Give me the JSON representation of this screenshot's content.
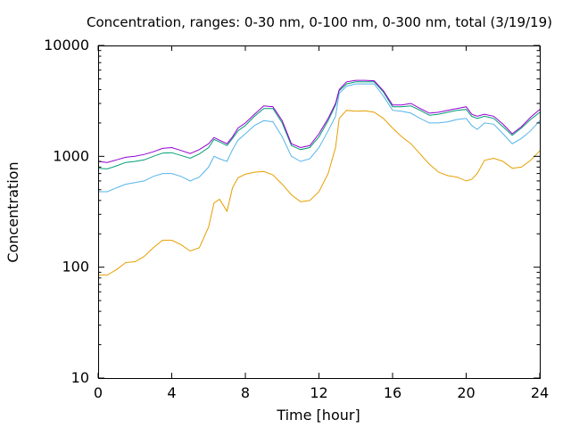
{
  "chart_data": {
    "type": "line",
    "title": "Concentration, ranges: 0-30 nm, 0-100 nm, 0-300 nm, total (3/19/19)",
    "xlabel": "Time [hour]",
    "ylabel": "Concentration",
    "xlim": [
      0,
      24
    ],
    "ylim": [
      10,
      10000
    ],
    "yscale": "log",
    "grid": false,
    "legend": "none",
    "xticks": [
      0,
      4,
      8,
      12,
      16,
      20,
      24
    ],
    "xtick_labels": [
      "0",
      "4",
      "8",
      "12",
      "16",
      "20",
      "24"
    ],
    "yticks": [
      10,
      100,
      1000,
      10000
    ],
    "ytick_labels": [
      "10",
      "100",
      "1000",
      "10000"
    ],
    "series": [
      {
        "color": "#e69f00",
        "x": [
          0,
          0.5,
          1,
          1.5,
          2,
          2.5,
          3,
          3.5,
          4,
          4.5,
          5,
          5.5,
          6,
          6.3,
          6.6,
          7,
          7.3,
          7.6,
          8,
          8.5,
          9,
          9.5,
          10,
          10.5,
          11,
          11.5,
          12,
          12.5,
          12.9,
          13.1,
          13.5,
          14,
          14.5,
          15,
          15.5,
          16,
          16.5,
          17,
          17.5,
          18,
          18.5,
          19,
          19.5,
          20,
          20.3,
          20.6,
          21,
          21.5,
          22,
          22.5,
          23,
          23.5,
          24
        ],
        "values": [
          85,
          85,
          95,
          110,
          112,
          125,
          150,
          175,
          175,
          160,
          140,
          150,
          230,
          380,
          410,
          320,
          520,
          640,
          690,
          720,
          730,
          680,
          560,
          450,
          390,
          400,
          480,
          700,
          1200,
          2200,
          2600,
          2550,
          2580,
          2500,
          2200,
          1800,
          1500,
          1300,
          1050,
          850,
          720,
          670,
          650,
          600,
          620,
          700,
          920,
          960,
          900,
          780,
          800,
          920,
          1120
        ]
      },
      {
        "color": "#56b4e9",
        "x": [
          0,
          0.5,
          1,
          1.5,
          2,
          2.5,
          3,
          3.5,
          4,
          4.5,
          5,
          5.5,
          6,
          6.3,
          6.6,
          7,
          7.3,
          7.6,
          8,
          8.5,
          9,
          9.5,
          10,
          10.5,
          11,
          11.5,
          12,
          12.5,
          12.9,
          13.1,
          13.5,
          14,
          14.5,
          15,
          15.5,
          16,
          16.5,
          17,
          17.5,
          18,
          18.5,
          19,
          19.5,
          20,
          20.3,
          20.6,
          21,
          21.5,
          22,
          22.5,
          23,
          23.5,
          24
        ],
        "values": [
          480,
          480,
          520,
          560,
          580,
          600,
          660,
          700,
          700,
          660,
          600,
          650,
          800,
          1000,
          950,
          900,
          1150,
          1400,
          1600,
          1900,
          2100,
          2050,
          1500,
          1000,
          900,
          950,
          1200,
          1700,
          2300,
          3700,
          4300,
          4500,
          4500,
          4500,
          3500,
          2600,
          2550,
          2450,
          2200,
          2000,
          2000,
          2050,
          2150,
          2200,
          1900,
          1750,
          2000,
          1950,
          1600,
          1300,
          1450,
          1700,
          2100
        ]
      },
      {
        "color": "#009e73",
        "x": [
          0,
          0.5,
          1,
          1.5,
          2,
          2.5,
          3,
          3.5,
          4,
          4.5,
          5,
          5.5,
          6,
          6.3,
          6.6,
          7,
          7.3,
          7.6,
          8,
          8.5,
          9,
          9.5,
          10,
          10.5,
          11,
          11.5,
          12,
          12.5,
          12.9,
          13.1,
          13.5,
          14,
          14.5,
          15,
          15.5,
          16,
          16.5,
          17,
          17.5,
          18,
          18.5,
          19,
          19.5,
          20,
          20.3,
          20.6,
          21,
          21.5,
          22,
          22.5,
          23,
          23.5,
          24
        ],
        "values": [
          780,
          770,
          820,
          880,
          900,
          930,
          1000,
          1070,
          1080,
          1020,
          960,
          1050,
          1200,
          1420,
          1350,
          1250,
          1450,
          1700,
          1900,
          2300,
          2700,
          2700,
          2000,
          1250,
          1150,
          1200,
          1500,
          2100,
          2900,
          3900,
          4500,
          4700,
          4700,
          4700,
          3800,
          2800,
          2800,
          2850,
          2600,
          2350,
          2400,
          2500,
          2600,
          2650,
          2300,
          2200,
          2300,
          2200,
          1850,
          1550,
          1800,
          2150,
          2500
        ]
      },
      {
        "color": "#9400d3",
        "x": [
          0,
          0.5,
          1,
          1.5,
          2,
          2.5,
          3,
          3.5,
          4,
          4.5,
          5,
          5.5,
          6,
          6.3,
          6.6,
          7,
          7.3,
          7.6,
          8,
          8.5,
          9,
          9.5,
          10,
          10.5,
          11,
          11.5,
          12,
          12.5,
          12.9,
          13.1,
          13.5,
          14,
          14.5,
          15,
          15.5,
          16,
          16.5,
          17,
          17.5,
          18,
          18.5,
          19,
          19.5,
          20,
          20.3,
          20.6,
          21,
          21.5,
          22,
          22.5,
          23,
          23.5,
          24
        ],
        "values": [
          900,
          880,
          930,
          980,
          1000,
          1040,
          1100,
          1180,
          1200,
          1130,
          1060,
          1150,
          1300,
          1480,
          1400,
          1300,
          1500,
          1800,
          2000,
          2400,
          2850,
          2800,
          2100,
          1300,
          1200,
          1250,
          1600,
          2200,
          3000,
          4000,
          4700,
          4850,
          4850,
          4800,
          3900,
          2900,
          2900,
          3000,
          2700,
          2450,
          2500,
          2600,
          2700,
          2800,
          2400,
          2300,
          2400,
          2300,
          1950,
          1600,
          1850,
          2250,
          2650
        ]
      }
    ]
  }
}
